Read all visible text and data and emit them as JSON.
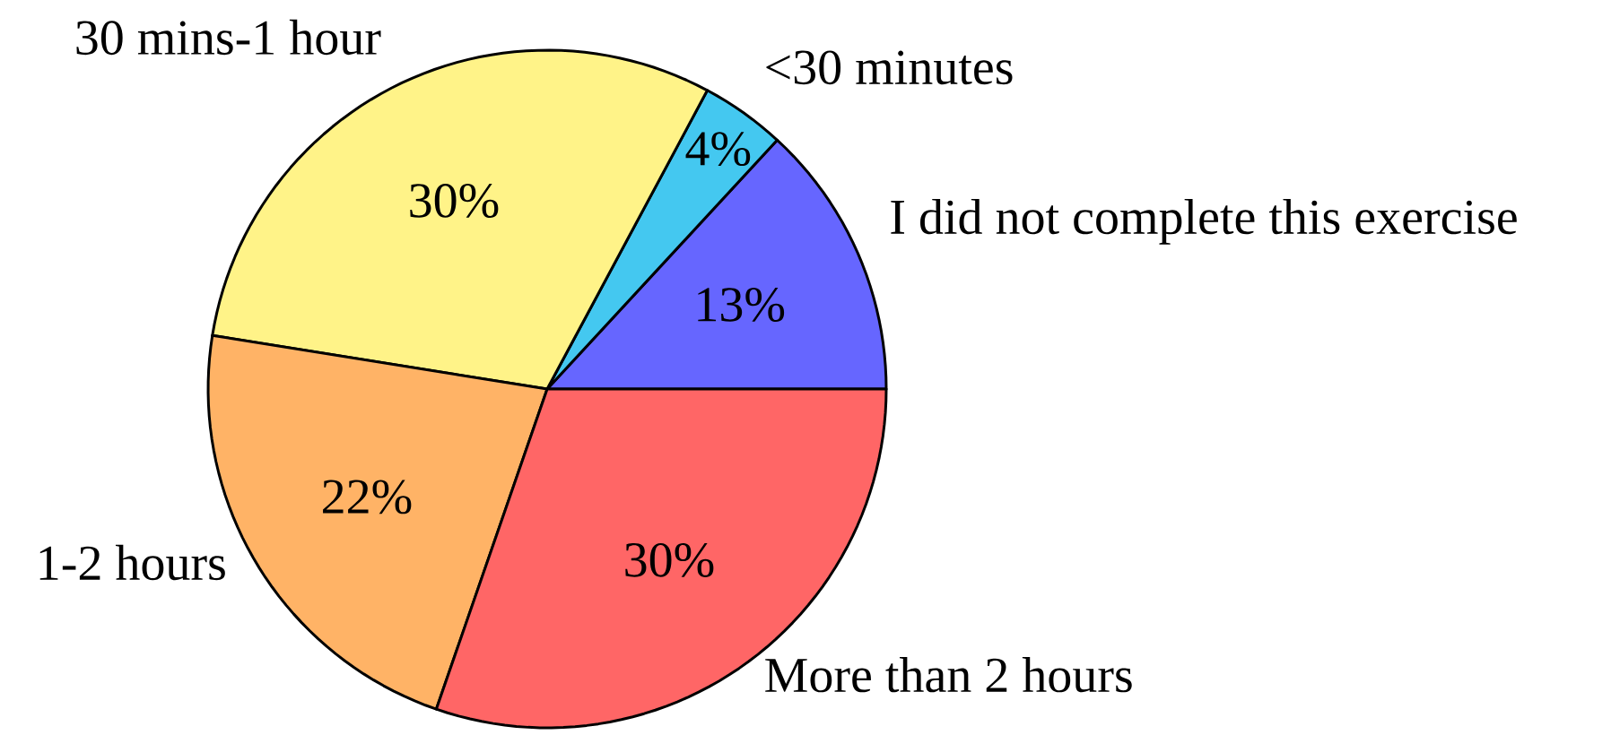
{
  "chart_data": {
    "type": "pie",
    "categories": [
      "I did not complete this exercise",
      "<30 minutes",
      "30 mins-1 hour",
      "1-2 hours",
      "More than 2 hours"
    ],
    "values": [
      13,
      4,
      30,
      22,
      30
    ],
    "colors": [
      "#6666ff",
      "#44c8f0",
      "#fff388",
      "#ffb366",
      "#ff6666"
    ],
    "value_labels": [
      "13%",
      "4%",
      "30%",
      "22%",
      "30%"
    ]
  }
}
